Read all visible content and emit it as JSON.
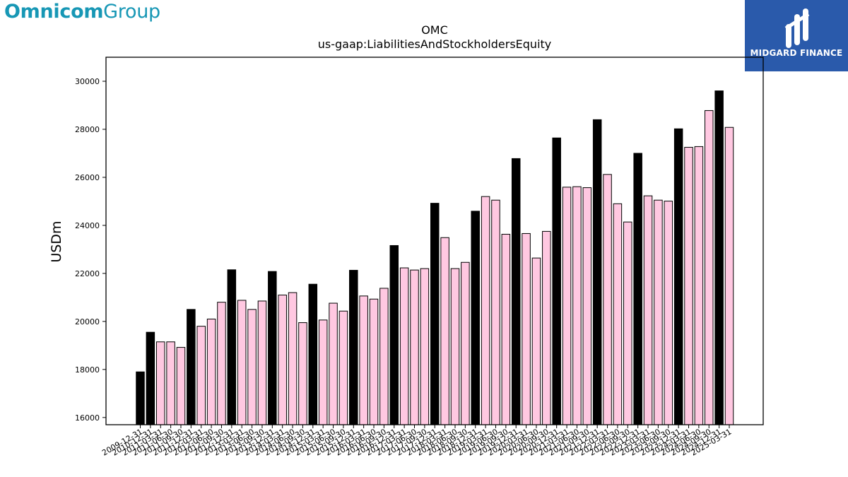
{
  "brand": {
    "left_bold": "Omnicom",
    "left_light": "Group",
    "right_name": "MIDGARD FINANCE",
    "right_icon": "midgard-logo-icon"
  },
  "colors": {
    "annual": "#000000",
    "quarterly": "#ffc8e1",
    "brand_blue": "#2a5aab",
    "omnicom_teal": "#1797b5"
  },
  "chart_data": {
    "type": "bar",
    "title": "OMC",
    "subtitle": "us-gaap:LiabilitiesAndStockholdersEquity",
    "xlabel": "",
    "ylabel": "USDm",
    "ylim": [
      15700,
      31000
    ],
    "yticks": [
      16000,
      18000,
      20000,
      22000,
      24000,
      26000,
      28000,
      30000
    ],
    "grid": false,
    "categories": [
      "2009-12-31",
      "2010-12-31",
      "2011-03-31",
      "2011-06-30",
      "2011-09-30",
      "2011-12-31",
      "2012-03-31",
      "2012-06-30",
      "2012-09-30",
      "2012-12-31",
      "2013-03-31",
      "2013-06-30",
      "2013-09-30",
      "2013-12-31",
      "2014-03-31",
      "2014-06-30",
      "2014-09-30",
      "2014-12-31",
      "2015-03-31",
      "2015-06-30",
      "2015-09-30",
      "2015-12-31",
      "2016-03-31",
      "2016-06-30",
      "2016-09-30",
      "2016-12-31",
      "2017-03-31",
      "2017-06-30",
      "2017-09-30",
      "2017-12-31",
      "2018-03-31",
      "2018-06-30",
      "2018-09-30",
      "2018-12-31",
      "2019-03-31",
      "2019-06-30",
      "2019-09-30",
      "2019-12-31",
      "2020-03-31",
      "2020-06-30",
      "2020-09-30",
      "2020-12-31",
      "2021-03-31",
      "2021-06-30",
      "2021-09-30",
      "2021-12-31",
      "2022-03-31",
      "2022-06-30",
      "2022-09-30",
      "2022-12-31",
      "2023-03-31",
      "2023-06-30",
      "2023-09-30",
      "2023-12-31",
      "2024-03-31",
      "2024-06-30",
      "2024-09-30",
      "2024-12-31",
      "2025-03-31"
    ],
    "values": [
      17900,
      19550,
      19150,
      19150,
      18920,
      20500,
      19800,
      20100,
      20800,
      22150,
      20880,
      20500,
      20850,
      22080,
      21100,
      21200,
      19950,
      21550,
      20060,
      20760,
      20430,
      22130,
      21060,
      20930,
      21380,
      23160,
      22230,
      22140,
      22200,
      24920,
      23490,
      22200,
      22460,
      24590,
      25200,
      25050,
      23630,
      26780,
      23660,
      22640,
      23750,
      27640,
      25590,
      25610,
      25570,
      28400,
      26120,
      24900,
      24140,
      27000,
      25230,
      25050,
      25010,
      28020,
      27250,
      27280,
      28780,
      29600,
      28080
    ],
    "annual_flags": [
      1,
      1,
      0,
      0,
      0,
      1,
      0,
      0,
      0,
      1,
      0,
      0,
      0,
      1,
      0,
      0,
      0,
      1,
      0,
      0,
      0,
      1,
      0,
      0,
      0,
      1,
      0,
      0,
      0,
      1,
      0,
      0,
      0,
      1,
      0,
      0,
      0,
      1,
      0,
      0,
      0,
      1,
      0,
      0,
      0,
      1,
      0,
      0,
      0,
      1,
      0,
      0,
      0,
      1,
      0,
      0,
      0,
      1,
      0
    ]
  }
}
